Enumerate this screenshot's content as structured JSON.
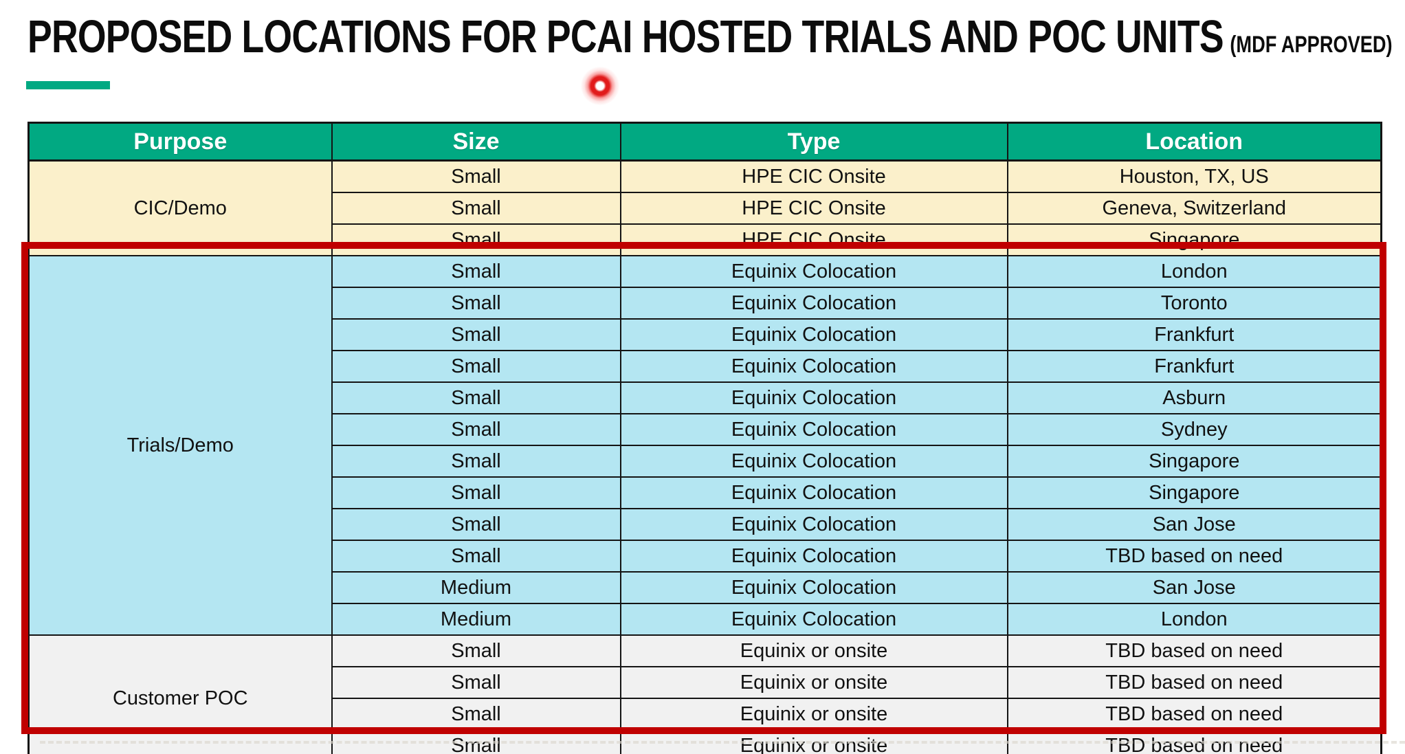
{
  "page": {
    "title": "PROPOSED LOCATIONS FOR PCAI HOSTED TRIALS AND POC UNITS",
    "title_suffix": "(MDF APPROVED)"
  },
  "colors": {
    "accent_green": "#01a982",
    "header_bg": "#01a982",
    "cic_row_bg": "#fbf0cb",
    "trials_row_bg": "#b4e6f2",
    "poc_row_bg": "#f1f1f1",
    "highlight_border": "#c00000",
    "laser_dot": "#e11b1b"
  },
  "table": {
    "headers": [
      "Purpose",
      "Size",
      "Type",
      "Location"
    ],
    "sections": [
      {
        "purpose": "CIC/Demo",
        "theme": "cic",
        "rows": [
          {
            "size": "Small",
            "type": "HPE CIC Onsite",
            "location": "Houston, TX, US"
          },
          {
            "size": "Small",
            "type": "HPE CIC Onsite",
            "location": "Geneva, Switzerland"
          },
          {
            "size": "Small",
            "type": "HPE CIC Onsite",
            "location": "Singapore"
          }
        ]
      },
      {
        "purpose": "Trials/Demo",
        "theme": "trials",
        "rows": [
          {
            "size": "Small",
            "type": "Equinix Colocation",
            "location": "London"
          },
          {
            "size": "Small",
            "type": "Equinix Colocation",
            "location": "Toronto"
          },
          {
            "size": "Small",
            "type": "Equinix Colocation",
            "location": "Frankfurt"
          },
          {
            "size": "Small",
            "type": "Equinix Colocation",
            "location": "Frankfurt"
          },
          {
            "size": "Small",
            "type": "Equinix Colocation",
            "location": "Asburn"
          },
          {
            "size": "Small",
            "type": "Equinix Colocation",
            "location": "Sydney"
          },
          {
            "size": "Small",
            "type": "Equinix Colocation",
            "location": "Singapore"
          },
          {
            "size": "Small",
            "type": "Equinix Colocation",
            "location": "Singapore"
          },
          {
            "size": "Small",
            "type": "Equinix Colocation",
            "location": "San Jose"
          },
          {
            "size": "Small",
            "type": "Equinix Colocation",
            "location": "TBD based on need"
          },
          {
            "size": "Medium",
            "type": "Equinix Colocation",
            "location": "San Jose"
          },
          {
            "size": "Medium",
            "type": "Equinix Colocation",
            "location": "London"
          }
        ]
      },
      {
        "purpose": "Customer POC",
        "theme": "poc",
        "rows": [
          {
            "size": "Small",
            "type": "Equinix or onsite",
            "location": "TBD based on need"
          },
          {
            "size": "Small",
            "type": "Equinix or onsite",
            "location": "TBD based on need"
          },
          {
            "size": "Small",
            "type": "Equinix or onsite",
            "location": "TBD based on need"
          },
          {
            "size": "Small",
            "type": "Equinix or onsite",
            "location": "TBD based on need"
          }
        ]
      }
    ]
  }
}
